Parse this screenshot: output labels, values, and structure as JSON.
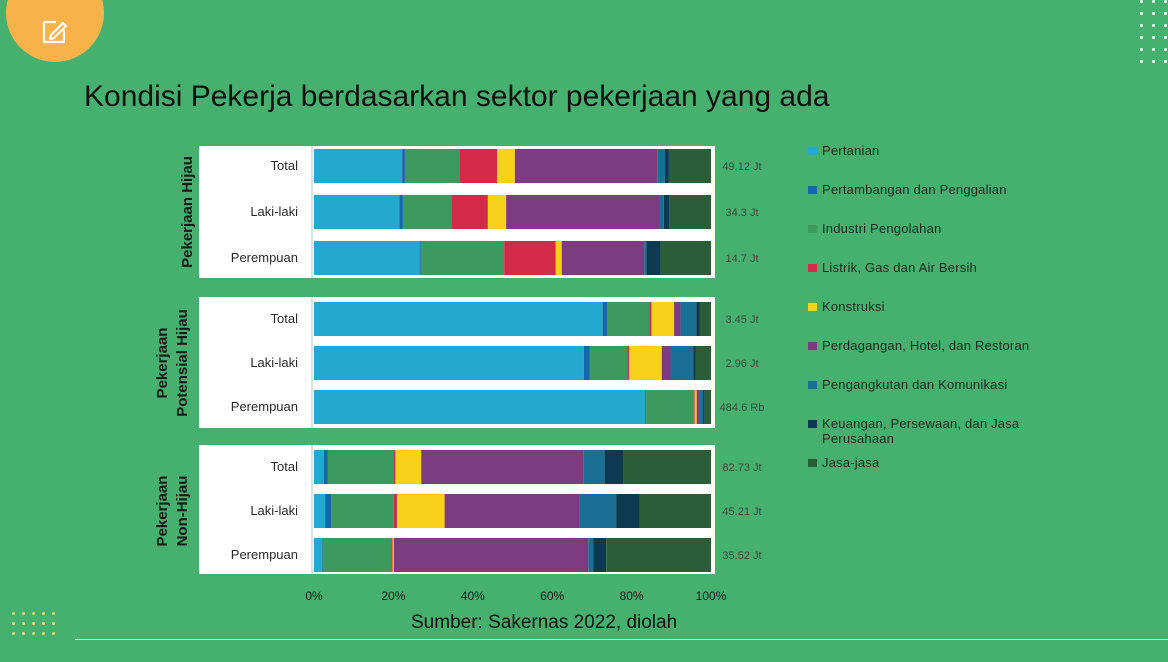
{
  "slide": {
    "title": "Kondisi Pekerja berdasarkan sektor pekerjaan yang ada",
    "source": "Sumber: Sakernas 2022, diolah"
  },
  "icons": {
    "top_left": "edit-icon",
    "decorations": [
      "dot-grid-decoration"
    ]
  },
  "colors": {
    "background": "#46b06e",
    "badge": "#f7b24a",
    "chart_bg": "#ffffff"
  },
  "chart_data": {
    "type": "bar",
    "orientation": "horizontal",
    "stacked": "percent",
    "xlim": [
      0,
      100
    ],
    "x_ticks": [
      "0%",
      "20%",
      "40%",
      "60%",
      "80%",
      "100%"
    ],
    "groups": [
      {
        "label": "Pekerjaan Hijau",
        "label_lines": [
          "Pekerjaan Hijau"
        ],
        "rows": [
          0,
          1,
          2
        ]
      },
      {
        "label": "Pekerjaan Potensial Hijau",
        "label_lines": [
          "Pekerjaan",
          "Potensial Hijau"
        ],
        "rows": [
          3,
          4,
          5
        ]
      },
      {
        "label": "Pekerjaan Non-Hijau",
        "label_lines": [
          "Pekerjaan",
          "Non-Hijau"
        ],
        "rows": [
          6,
          7,
          8
        ]
      }
    ],
    "categories": [
      "Total",
      "Laki-laki",
      "Perempuan",
      "Total",
      "Laki-laki",
      "Perempuan",
      "Total",
      "Laki-laki",
      "Perempuan"
    ],
    "totals": [
      "49.12 Jt",
      "34.3 Jt",
      "14.7 Jt",
      "3.45 Jt",
      "2.96 Jt",
      "484.6 Rb",
      "82.73 Jt",
      "45.21 Jt",
      "35.52 Jt"
    ],
    "series": [
      {
        "name": "Pertanian",
        "color": "#23a9cf",
        "values": [
          22.2,
          21.5,
          26.6,
          72.7,
          68,
          83.5,
          2.5,
          2.8,
          2
        ]
      },
      {
        "name": "Pertambangan dan Penggalian",
        "color": "#1565a8",
        "values": [
          0.7,
          0.9,
          0.3,
          1.2,
          1.4,
          0.2,
          1,
          1.5,
          0.2
        ]
      },
      {
        "name": "Industri Pengolahan",
        "color": "#3c9a5e",
        "values": [
          13.7,
          12.2,
          21,
          10.6,
          9.5,
          12,
          16.5,
          15.8,
          17.3
        ]
      },
      {
        "name": "Listrik, Gas dan Air Bersih",
        "color": "#d42a4a",
        "values": [
          9.5,
          9.2,
          13,
          0.5,
          0.5,
          0.2,
          0.5,
          0.8,
          0.3
        ]
      },
      {
        "name": "Konstruksi",
        "color": "#f7d11a",
        "values": [
          4.5,
          4.6,
          1.5,
          5.7,
          8.2,
          0.5,
          6.5,
          12,
          0.3
        ]
      },
      {
        "name": "Perdagangan, Hotel, dan Restoran",
        "color": "#7d3b82",
        "values": [
          36,
          38.5,
          20.8,
          1.6,
          2.2,
          0.8,
          40.8,
          34,
          49
        ]
      },
      {
        "name": "Pengangkutan dan Komunikasi",
        "color": "#1b6e94",
        "values": [
          1.8,
          1.2,
          0.5,
          4,
          5.8,
          0.8,
          5.4,
          9.2,
          1.3
        ]
      },
      {
        "name": "Keuangan, Persewaan, dan Jasa Perusahaan",
        "color": "#0c3a50",
        "values": [
          1,
          1.5,
          3.6,
          0.8,
          0.6,
          0.4,
          4.8,
          5.9,
          3.2
        ]
      },
      {
        "name": "Jasa-jasa",
        "color": "#2a5e38",
        "values": [
          10.6,
          10.4,
          12.7,
          2.9,
          3.8,
          1.6,
          22,
          18,
          26.4
        ]
      }
    ]
  }
}
